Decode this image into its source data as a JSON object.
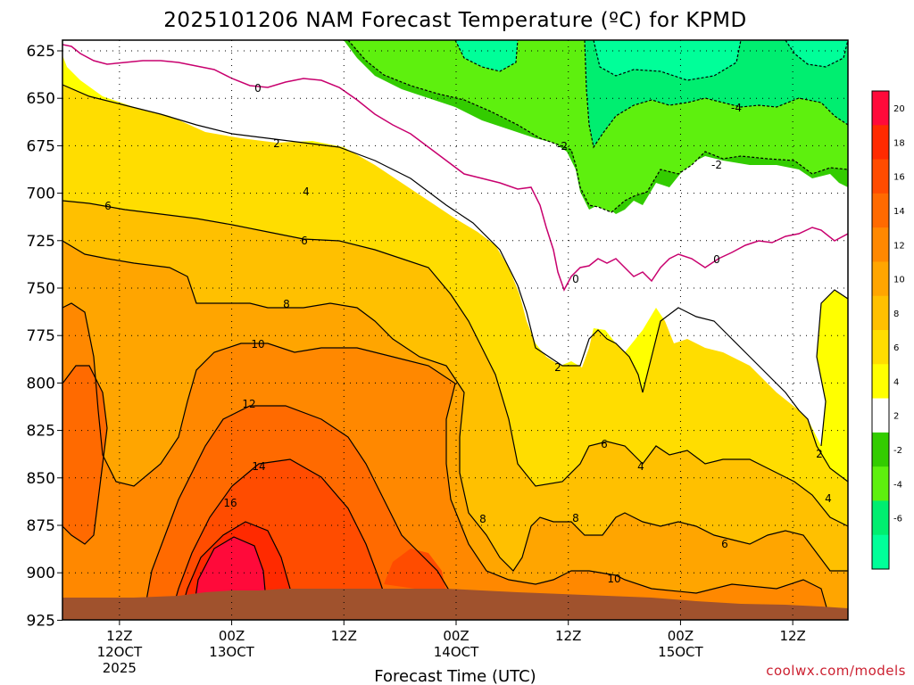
{
  "chart_data": {
    "type": "contour",
    "title": "2025101206 NAM Forecast Temperature (ºC) for KPMD",
    "xlabel": "Forecast Time (UTC)",
    "ylabel": "",
    "credit": "coolwx.com/models",
    "y_ticks": [
      "625",
      "650",
      "675",
      "700",
      "725",
      "750",
      "775",
      "800",
      "825",
      "850",
      "875",
      "900",
      "925"
    ],
    "x_ticks": [
      {
        "lines": [
          "12Z",
          "12OCT",
          "2025"
        ],
        "hour": 6
      },
      {
        "lines": [
          "00Z",
          "13OCT"
        ],
        "hour": 18
      },
      {
        "lines": [
          "12Z"
        ],
        "hour": 30
      },
      {
        "lines": [
          "00Z",
          "14OCT"
        ],
        "hour": 42
      },
      {
        "lines": [
          "12Z"
        ],
        "hour": 54
      },
      {
        "lines": [
          "00Z",
          "15OCT"
        ],
        "hour": 66
      },
      {
        "lines": [
          "12Z"
        ],
        "hour": 78
      }
    ],
    "colorbar_labels": [
      "20",
      "18",
      "16",
      "14",
      "12",
      "10",
      "8",
      "6",
      "4",
      "2",
      "-2",
      "-4",
      "-6"
    ],
    "contour_labels": [
      "0",
      "2",
      "4",
      "6",
      "8",
      "10",
      "12",
      "14",
      "16",
      "-2",
      "-4"
    ],
    "colors": {
      "t_m6_below": "#00ff99",
      "t_m6_m4": "#00ee70",
      "t_m4_m2": "#5ef00e",
      "t_m2_0": "#33cc00",
      "t_0_2": "#ffffff",
      "t_2_4": "#ffff00",
      "t_4_6": "#ffdd00",
      "t_6_8": "#ffc000",
      "t_8_10": "#ffa500",
      "t_10_12": "#ff8800",
      "t_12_14": "#ff6a00",
      "t_14_16": "#ff4c00",
      "t_16_18": "#ff2a00",
      "t_18_20": "#ff0a3a",
      "terrain": "#a0522d",
      "zero_line": "#c8006e"
    }
  }
}
